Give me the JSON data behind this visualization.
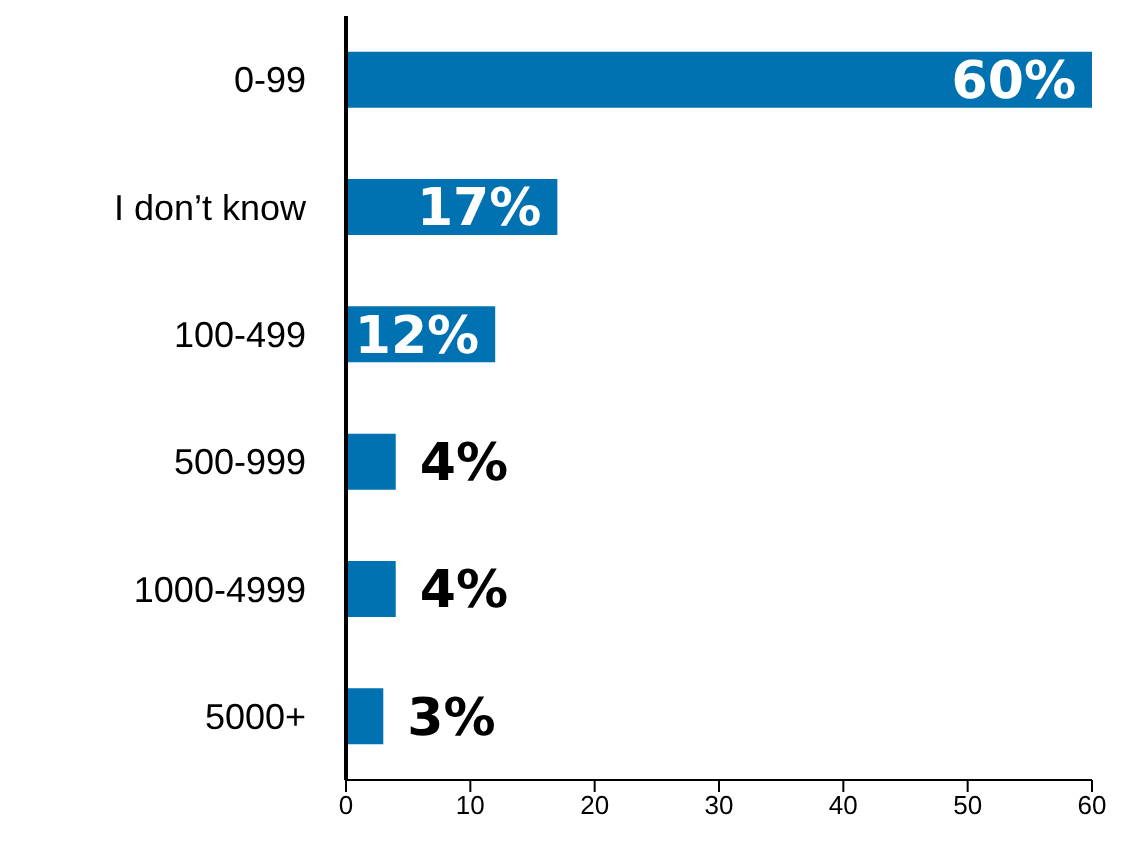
{
  "chart_data": {
    "type": "bar",
    "orientation": "horizontal",
    "categories": [
      "0-99",
      "I don’t know",
      "100-499",
      "500-999",
      "1000-4999",
      "5000+"
    ],
    "values": [
      60,
      17,
      12,
      4,
      4,
      3
    ],
    "value_labels": [
      "60%",
      "17%",
      "12%",
      "4%",
      "4%",
      "3%"
    ],
    "color": "#0072b1",
    "xlim": [
      0,
      60
    ],
    "xticks": [
      0,
      10,
      20,
      30,
      40,
      50,
      60
    ],
    "grid": false,
    "legend": false
  }
}
